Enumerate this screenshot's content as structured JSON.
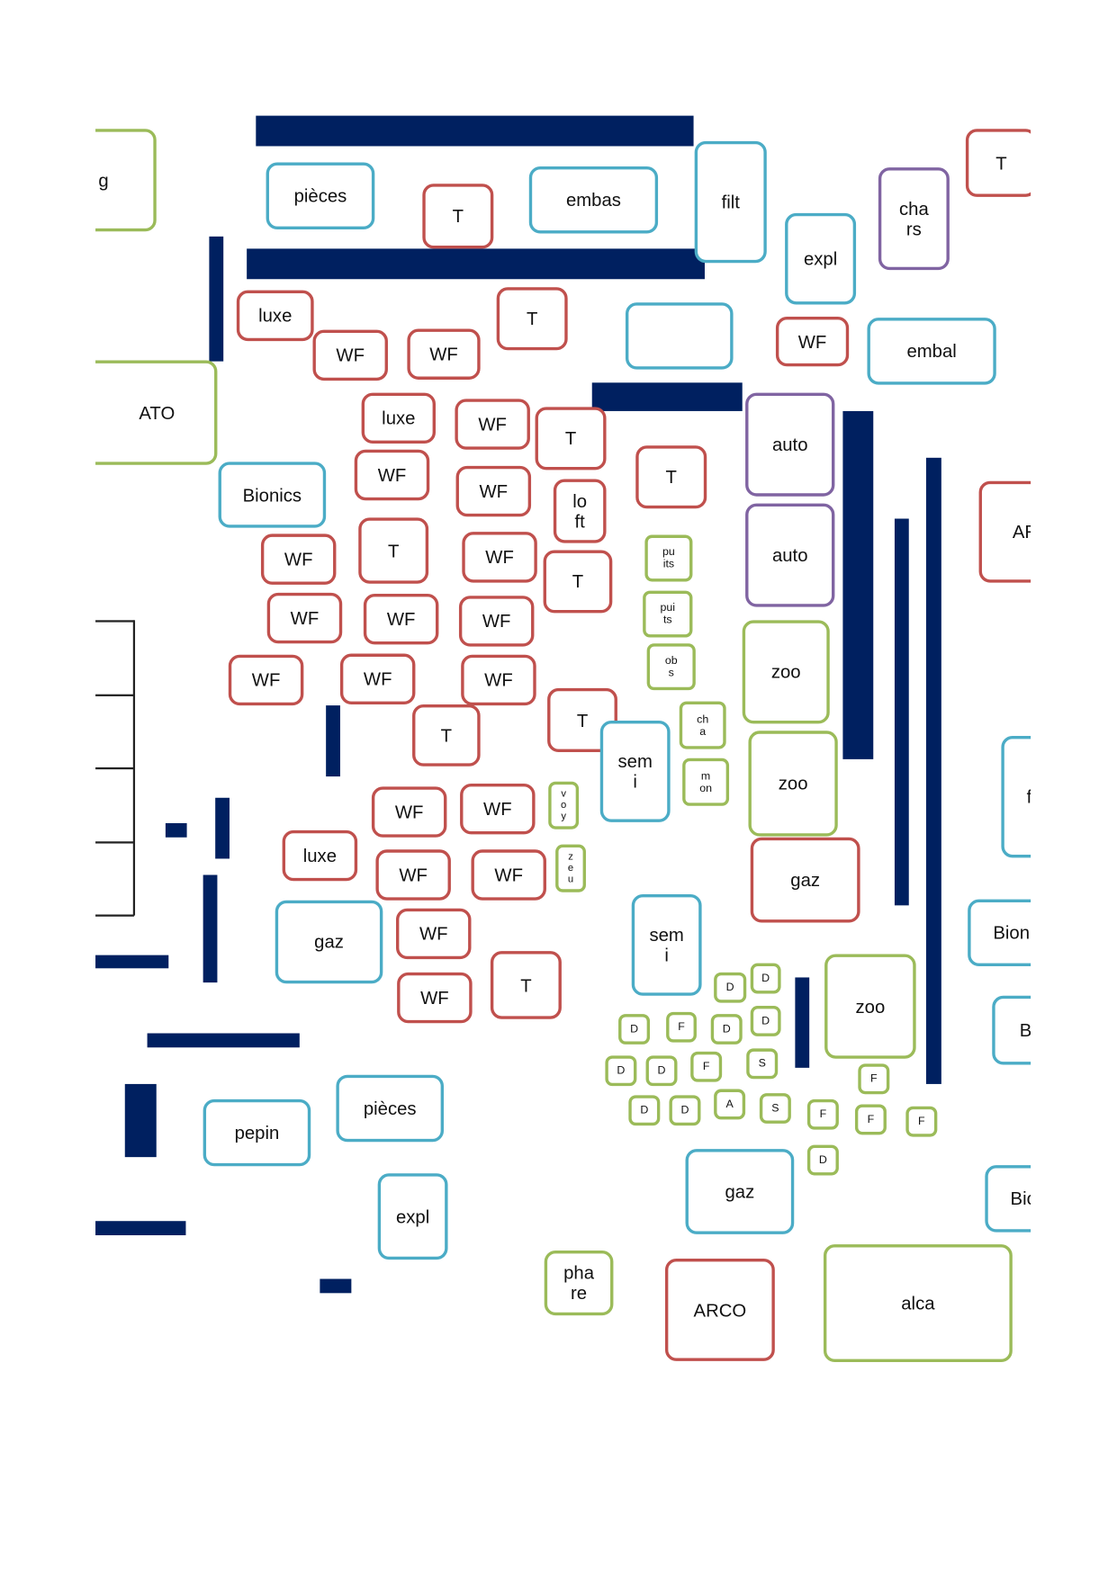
{
  "colors": {
    "red": "#c0504d",
    "blue": "#4bacc6",
    "green": "#9bbb59",
    "purple": "#8064a2",
    "navy": "#002060"
  },
  "boxes": [
    "g",
    "pièces",
    "T",
    "embas",
    "filt",
    "T",
    "cha\nrs",
    "expl",
    "luxe",
    "WF",
    "WF",
    "T",
    "",
    "WF",
    "embal",
    "ATO",
    "luxe",
    "WF",
    "T",
    "auto",
    "T",
    "Bionics",
    "WF",
    "WF",
    "lo\nft",
    "auto",
    "AR",
    "WF",
    "T",
    "WF",
    "T",
    "pu\nits",
    "pui\nts",
    "WF",
    "WF",
    "WF",
    "ob\ns",
    "zoo",
    "WF",
    "WF",
    "WF",
    "T",
    "T",
    "sem\ni",
    "ch\na",
    "m\non",
    "zoo",
    "f",
    "WF",
    "WF",
    "v\no\ny",
    "luxe",
    "WF",
    "WF",
    "z\ne\nu",
    "gaz",
    "gaz",
    "WF",
    "sem\ni",
    "Bion",
    "WF",
    "T",
    "zoo",
    "B",
    "pièces",
    "pepin",
    "gaz",
    "Bic",
    "expl",
    "pha\nre",
    "ARCO",
    "alca"
  ],
  "small": [
    "D",
    "D",
    "D",
    "F",
    "D",
    "D",
    "D",
    "D",
    "F",
    "S",
    "D",
    "D",
    "A",
    "S",
    "F",
    "F",
    "F",
    "F",
    "D"
  ]
}
